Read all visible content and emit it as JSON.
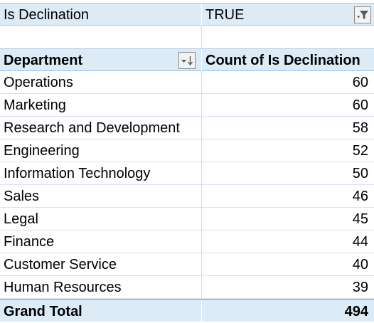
{
  "filter": {
    "field_label": "Is Declination",
    "field_value": "TRUE",
    "button_icon": "filter-applied-icon"
  },
  "header": {
    "row_label": "Department",
    "value_label": "Count of Is Declination",
    "sort_icon": "sort-descending-icon"
  },
  "rows": [
    {
      "department": "Operations",
      "count": "60"
    },
    {
      "department": "Marketing",
      "count": "60"
    },
    {
      "department": "Research and Development",
      "count": "58"
    },
    {
      "department": "Engineering",
      "count": "52"
    },
    {
      "department": "Information Technology",
      "count": "50"
    },
    {
      "department": "Sales",
      "count": "46"
    },
    {
      "department": "Legal",
      "count": "45"
    },
    {
      "department": "Finance",
      "count": "44"
    },
    {
      "department": "Customer Service",
      "count": "40"
    },
    {
      "department": "Human Resources",
      "count": "39"
    }
  ],
  "total": {
    "label": "Grand Total",
    "value": "494"
  },
  "colors": {
    "header_fill": "#ddebf7",
    "border_accent": "#9bc2e6",
    "gridline": "#d9d9d9"
  }
}
